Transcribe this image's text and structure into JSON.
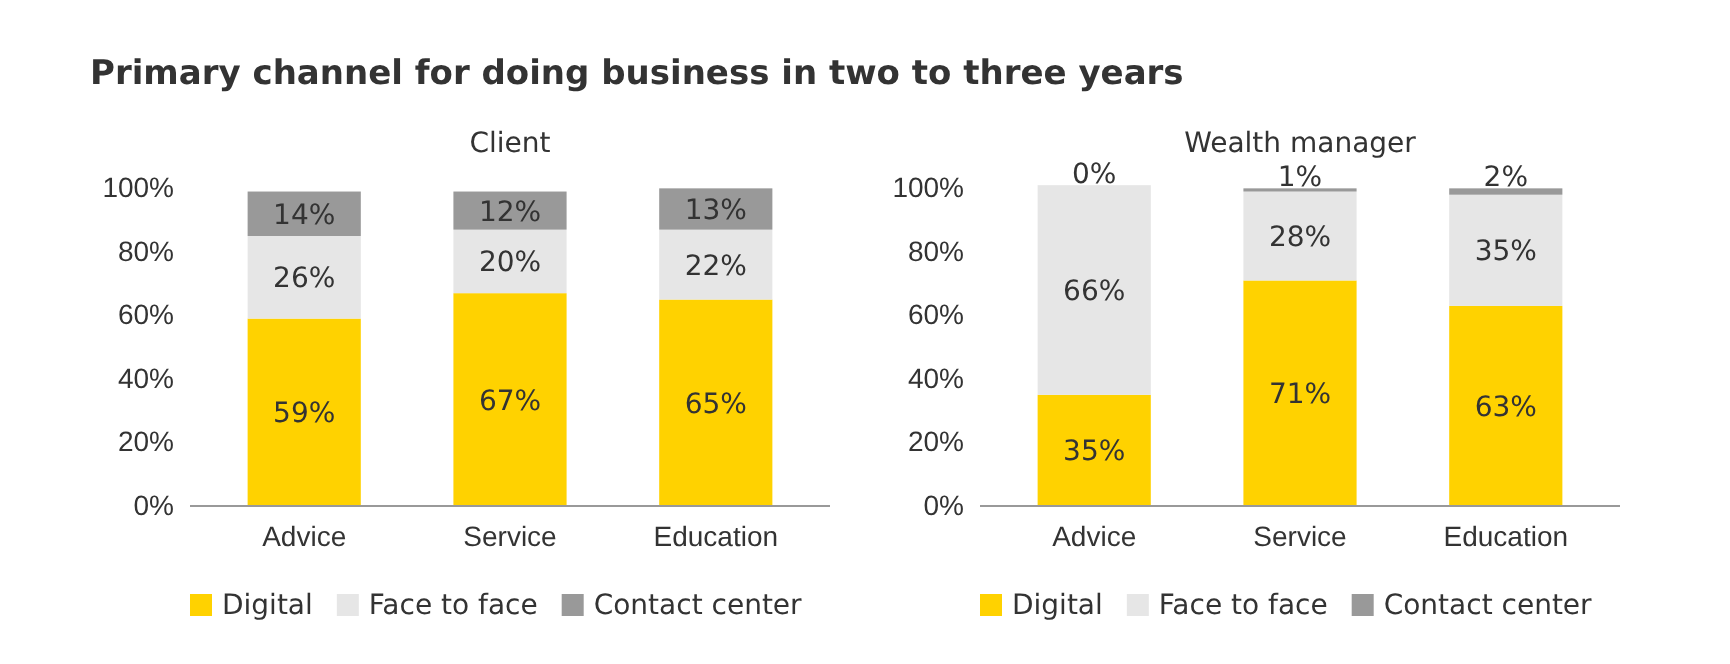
{
  "chart_data": [
    {
      "type": "bar",
      "title": "Primary channel for doing business in two to three years",
      "subtitle": "Client",
      "categories": [
        "Advice",
        "Service",
        "Education"
      ],
      "stacked": true,
      "legend": "bottom",
      "grid": false,
      "ylim": [
        0,
        102
      ],
      "yticks": [
        {
          "value": 0,
          "label": "0%"
        },
        {
          "value": 20,
          "label": "20%"
        },
        {
          "value": 40,
          "label": "40%"
        },
        {
          "value": 60,
          "label": "60%"
        },
        {
          "value": 80,
          "label": "80%"
        },
        {
          "value": 100,
          "label": "100%"
        }
      ],
      "series": [
        {
          "name": "Digital",
          "color": "#ffd200",
          "values": [
            59,
            67,
            65
          ],
          "value_labels": [
            "59%",
            "67%",
            "65%"
          ]
        },
        {
          "name": "Face to face",
          "color": "#e6e6e6",
          "values": [
            26,
            20,
            22
          ],
          "value_labels": [
            "26%",
            "20%",
            "22%"
          ]
        },
        {
          "name": "Contact center",
          "color": "#999999",
          "values": [
            14,
            12,
            13
          ],
          "value_labels": [
            "14%",
            "12%",
            "13%"
          ]
        }
      ]
    },
    {
      "type": "bar",
      "subtitle": "Wealth manager",
      "categories": [
        "Advice",
        "Service",
        "Education"
      ],
      "stacked": true,
      "legend": "bottom",
      "grid": false,
      "ylim": [
        0,
        102
      ],
      "yticks": [
        {
          "value": 0,
          "label": "0%"
        },
        {
          "value": 20,
          "label": "20%"
        },
        {
          "value": 40,
          "label": "40%"
        },
        {
          "value": 60,
          "label": "60%"
        },
        {
          "value": 80,
          "label": "80%"
        },
        {
          "value": 100,
          "label": "100%"
        }
      ],
      "series": [
        {
          "name": "Digital",
          "color": "#ffd200",
          "values": [
            35,
            71,
            63
          ],
          "value_labels": [
            "35%",
            "71%",
            "63%"
          ]
        },
        {
          "name": "Face to face",
          "color": "#e6e6e6",
          "values": [
            66,
            28,
            35
          ],
          "value_labels": [
            "66%",
            "28%",
            "35%"
          ]
        },
        {
          "name": "Contact center",
          "color": "#999999",
          "values": [
            0,
            1,
            2
          ],
          "value_labels": [
            "0%",
            "1%",
            "2%"
          ]
        }
      ]
    }
  ]
}
